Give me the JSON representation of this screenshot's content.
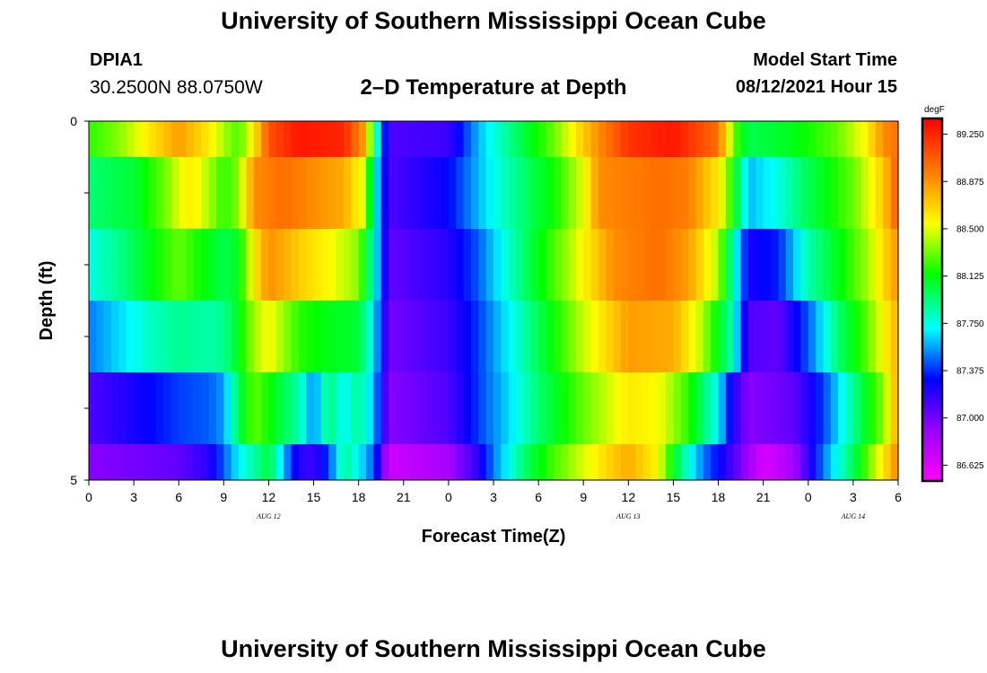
{
  "header": {
    "main_title": "University of Southern Mississippi Ocean Cube",
    "station_id": "DPIA1",
    "station_coords": "30.2500N  88.0750W",
    "plot_title": "2–D Temperature at Depth",
    "model_start_label": "Model Start Time",
    "model_start_value": "08/12/2021 Hour 15"
  },
  "footer": {
    "title": "University of Southern Mississippi Ocean Cube"
  },
  "chart_data": {
    "type": "heatmap",
    "title": "2–D Temperature at Depth",
    "xlabel": "Forecast Time(Z)",
    "ylabel": "Depth (ft)",
    "y_tick_labels": [
      "0",
      "5"
    ],
    "y_range": [
      0,
      5
    ],
    "x_range_hours": [
      0,
      54
    ],
    "x_ticks": [
      {
        "h": 0,
        "label": "0"
      },
      {
        "h": 3,
        "label": "3"
      },
      {
        "h": 6,
        "label": "6"
      },
      {
        "h": 9,
        "label": "9"
      },
      {
        "h": 12,
        "label": "12"
      },
      {
        "h": 15,
        "label": "15"
      },
      {
        "h": 18,
        "label": "18"
      },
      {
        "h": 21,
        "label": "21"
      },
      {
        "h": 24,
        "label": "0"
      },
      {
        "h": 27,
        "label": "3"
      },
      {
        "h": 30,
        "label": "6"
      },
      {
        "h": 33,
        "label": "9"
      },
      {
        "h": 36,
        "label": "12"
      },
      {
        "h": 39,
        "label": "15"
      },
      {
        "h": 42,
        "label": "18"
      },
      {
        "h": 45,
        "label": "21"
      },
      {
        "h": 48,
        "label": "0"
      },
      {
        "h": 51,
        "label": "3"
      },
      {
        "h": 54,
        "label": "6"
      }
    ],
    "date_labels": [
      {
        "h": 12,
        "label": "AUG 12"
      },
      {
        "h": 36,
        "label": "AUG 13"
      },
      {
        "h": 51,
        "label": "AUG 14"
      }
    ],
    "colorbar": {
      "unit": "degF",
      "min": 86.5,
      "max": 89.375,
      "tick_values": [
        89.25,
        88.875,
        88.5,
        88.125,
        87.75,
        87.375,
        87.0,
        86.625
      ],
      "tick_labels": [
        "89.250",
        "88.875",
        "88.500",
        "88.125",
        "87.750",
        "87.375",
        "87.000",
        "86.625"
      ]
    },
    "depth_layers": [
      {
        "depth_ft": 0.5,
        "keyframes": [
          [
            0,
            88.2
          ],
          [
            2,
            88.35
          ],
          [
            4,
            88.6
          ],
          [
            6,
            88.85
          ],
          [
            8,
            88.6
          ],
          [
            9,
            88.4
          ],
          [
            10,
            88.25
          ],
          [
            11,
            88.6
          ],
          [
            12,
            89.1
          ],
          [
            14,
            89.3
          ],
          [
            17,
            89.25
          ],
          [
            18.5,
            88.8
          ],
          [
            19,
            88.0
          ],
          [
            20,
            87.1
          ],
          [
            24,
            87.15
          ],
          [
            26,
            87.6
          ],
          [
            28,
            87.9
          ],
          [
            31,
            88.3
          ],
          [
            32,
            88.5
          ],
          [
            34,
            88.9
          ],
          [
            36,
            89.2
          ],
          [
            39,
            89.3
          ],
          [
            42,
            89.0
          ],
          [
            43,
            88.3
          ],
          [
            44,
            88.0
          ],
          [
            47,
            88.1
          ],
          [
            50,
            88.3
          ],
          [
            52,
            88.6
          ],
          [
            53,
            88.9
          ],
          [
            54,
            89.0
          ]
        ]
      },
      {
        "depth_ft": 1.5,
        "keyframes": [
          [
            0,
            87.95
          ],
          [
            3,
            88.05
          ],
          [
            5,
            88.3
          ],
          [
            6,
            88.5
          ],
          [
            7,
            88.6
          ],
          [
            8,
            88.4
          ],
          [
            9,
            88.2
          ],
          [
            10,
            88.35
          ],
          [
            11,
            88.9
          ],
          [
            13,
            89.0
          ],
          [
            17,
            88.8
          ],
          [
            18.5,
            88.45
          ],
          [
            19,
            87.8
          ],
          [
            20,
            87.1
          ],
          [
            24,
            87.3
          ],
          [
            26,
            87.6
          ],
          [
            28,
            87.85
          ],
          [
            31,
            88.15
          ],
          [
            33,
            88.5
          ],
          [
            34,
            88.9
          ],
          [
            38,
            89.0
          ],
          [
            40,
            88.95
          ],
          [
            42,
            88.6
          ],
          [
            43,
            88.15
          ],
          [
            44,
            87.6
          ],
          [
            46,
            87.75
          ],
          [
            48,
            88.0
          ],
          [
            51,
            88.3
          ],
          [
            53,
            88.7
          ],
          [
            54,
            89.1
          ]
        ]
      },
      {
        "depth_ft": 2.5,
        "keyframes": [
          [
            0,
            87.75
          ],
          [
            2,
            87.9
          ],
          [
            4,
            88.1
          ],
          [
            6,
            88.3
          ],
          [
            8,
            88.1
          ],
          [
            9,
            88.0
          ],
          [
            10,
            88.1
          ],
          [
            11,
            88.6
          ],
          [
            12,
            88.9
          ],
          [
            14,
            88.7
          ],
          [
            16,
            88.55
          ],
          [
            18,
            88.35
          ],
          [
            19,
            87.8
          ],
          [
            20,
            87.05
          ],
          [
            24,
            87.2
          ],
          [
            26,
            87.45
          ],
          [
            28,
            87.8
          ],
          [
            30,
            88.1
          ],
          [
            32,
            88.4
          ],
          [
            35,
            88.9
          ],
          [
            38,
            89.0
          ],
          [
            40,
            88.85
          ],
          [
            42,
            88.4
          ],
          [
            43,
            87.8
          ],
          [
            44,
            87.25
          ],
          [
            46,
            87.35
          ],
          [
            48,
            87.85
          ],
          [
            50,
            88.1
          ],
          [
            52,
            88.4
          ],
          [
            54,
            88.9
          ]
        ]
      },
      {
        "depth_ft": 3.5,
        "keyframes": [
          [
            0,
            87.5
          ],
          [
            2,
            87.65
          ],
          [
            4,
            87.8
          ],
          [
            6,
            87.9
          ],
          [
            8,
            87.85
          ],
          [
            9,
            87.9
          ],
          [
            10,
            88.1
          ],
          [
            11,
            88.4
          ],
          [
            12,
            88.55
          ],
          [
            14,
            88.2
          ],
          [
            16,
            88.1
          ],
          [
            18,
            88.05
          ],
          [
            19,
            87.7
          ],
          [
            20,
            87.0
          ],
          [
            24,
            87.15
          ],
          [
            26,
            87.4
          ],
          [
            28,
            87.7
          ],
          [
            30,
            88.0
          ],
          [
            33,
            88.45
          ],
          [
            36,
            88.85
          ],
          [
            39,
            88.8
          ],
          [
            41,
            88.4
          ],
          [
            43,
            87.8
          ],
          [
            44,
            87.1
          ],
          [
            46,
            87.05
          ],
          [
            48,
            87.45
          ],
          [
            50,
            87.95
          ],
          [
            52,
            88.3
          ],
          [
            54,
            88.8
          ]
        ]
      },
      {
        "depth_ft": 4.5,
        "keyframes": [
          [
            0,
            87.1
          ],
          [
            2,
            87.2
          ],
          [
            4,
            87.3
          ],
          [
            6,
            87.4
          ],
          [
            8,
            87.45
          ],
          [
            9,
            87.55
          ],
          [
            10,
            88.0
          ],
          [
            11,
            88.3
          ],
          [
            12,
            88.15
          ],
          [
            14,
            87.85
          ],
          [
            15,
            87.5
          ],
          [
            16,
            87.95
          ],
          [
            17,
            87.7
          ],
          [
            18,
            87.9
          ],
          [
            19,
            87.6
          ],
          [
            20,
            86.95
          ],
          [
            24,
            87.1
          ],
          [
            26,
            87.4
          ],
          [
            28,
            87.65
          ],
          [
            30,
            87.95
          ],
          [
            33,
            88.3
          ],
          [
            36,
            88.6
          ],
          [
            38,
            88.55
          ],
          [
            40,
            88.2
          ],
          [
            42,
            87.7
          ],
          [
            43,
            87.2
          ],
          [
            44,
            86.95
          ],
          [
            47,
            87.05
          ],
          [
            49,
            87.4
          ],
          [
            51,
            87.9
          ],
          [
            53,
            88.35
          ],
          [
            54,
            88.85
          ]
        ]
      },
      {
        "depth_ft": 5.0,
        "keyframes": [
          [
            0,
            86.95
          ],
          [
            3,
            87.0
          ],
          [
            6,
            87.05
          ],
          [
            8,
            87.2
          ],
          [
            9,
            87.45
          ],
          [
            10,
            87.7
          ],
          [
            11,
            87.85
          ],
          [
            12,
            88.05
          ],
          [
            13,
            87.6
          ],
          [
            14,
            87.2
          ],
          [
            15,
            87.15
          ],
          [
            16,
            87.4
          ],
          [
            17,
            87.9
          ],
          [
            18,
            87.7
          ],
          [
            19,
            87.45
          ],
          [
            20,
            86.7
          ],
          [
            24,
            86.85
          ],
          [
            26,
            87.2
          ],
          [
            27,
            87.5
          ],
          [
            29,
            87.95
          ],
          [
            31,
            88.25
          ],
          [
            34,
            88.6
          ],
          [
            36,
            88.8
          ],
          [
            38,
            88.55
          ],
          [
            39,
            88.1
          ],
          [
            40,
            87.75
          ],
          [
            41,
            87.5
          ],
          [
            43,
            87.1
          ],
          [
            45,
            86.65
          ],
          [
            47,
            86.85
          ],
          [
            49,
            87.5
          ],
          [
            51,
            88.0
          ],
          [
            53,
            88.6
          ],
          [
            54,
            88.95
          ]
        ]
      }
    ]
  }
}
